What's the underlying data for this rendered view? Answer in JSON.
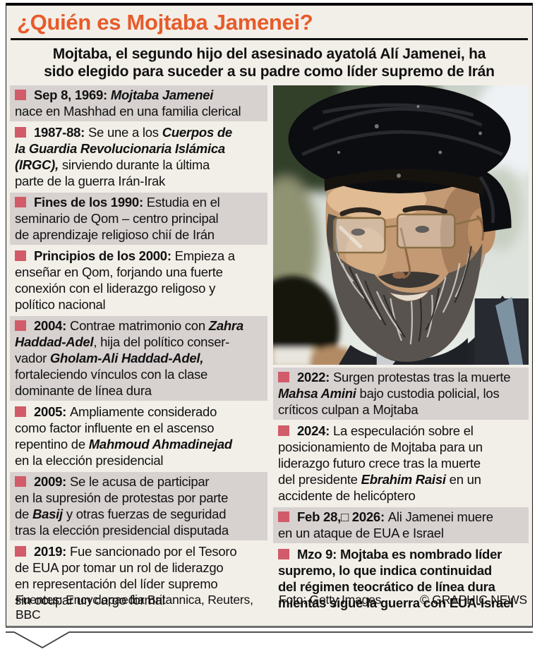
{
  "header": {
    "title": "¿Quién es Mojtaba Jamenei?",
    "subtitle": "Mojtaba, el segundo hijo del asesinado ayatolá Alí Jamenei, ha\nsido elegido para suceder a su padre como líder supremo de Irán"
  },
  "colors": {
    "accent_orange": "#E75B2B",
    "bullet_red": "#D15B69",
    "shade_gray": "#D7D1D0",
    "page_cream": "#F2EFE8"
  },
  "timeline": {
    "left": [
      {
        "shaded": true,
        "segments": [
          {
            "t": "Sep 8, 1969: ",
            "s": "b"
          },
          {
            "t": "Mojtaba Jamenei",
            "s": "bi"
          },
          {
            "t": "\nnace en Mashhad en una familia clerical",
            "s": "r"
          }
        ]
      },
      {
        "shaded": false,
        "segments": [
          {
            "t": "1987-88: ",
            "s": "b"
          },
          {
            "t": "Se une a los ",
            "s": "r"
          },
          {
            "t": "Cuerpos de\nla Guardia Revolucionaria Islámica\n(IRGC), ",
            "s": "bi"
          },
          {
            "t": "sirviendo durante la última\nparte de la guerra Irán-Irak",
            "s": "r"
          }
        ]
      },
      {
        "shaded": true,
        "segments": [
          {
            "t": "Fines de los 1990: ",
            "s": "b"
          },
          {
            "t": "Estudia en el\nseminario de Qom – centro principal\nde aprendizaje religioso chií de Irán",
            "s": "r"
          }
        ]
      },
      {
        "shaded": false,
        "segments": [
          {
            "t": "Principios de los 2000: ",
            "s": "b"
          },
          {
            "t": "Empieza a\nenseñar en Qom, forjando una fuerte\nconexión con el liderazgo religoso y\npolítico nacional",
            "s": "r"
          }
        ]
      },
      {
        "shaded": true,
        "segments": [
          {
            "t": "2004: ",
            "s": "b"
          },
          {
            "t": "Contrae matrimonio con ",
            "s": "r"
          },
          {
            "t": "Zahra\nHaddad-Adel",
            "s": "bi"
          },
          {
            "t": ", hija del político conser-\nvador ",
            "s": "r"
          },
          {
            "t": "Gholam-Ali Haddad-Adel,",
            "s": "bi"
          },
          {
            "t": "\nfortaleciendo vínculos con la clase\ndominante de línea dura",
            "s": "r"
          }
        ]
      },
      {
        "shaded": false,
        "segments": [
          {
            "t": "2005: ",
            "s": "b"
          },
          {
            "t": "Ampliamente considerado\ncomo factor influente en el ascenso\nrepentino de ",
            "s": "r"
          },
          {
            "t": "Mahmoud Ahmadinejad",
            "s": "bi"
          },
          {
            "t": "\nen la elección presidencial",
            "s": "r"
          }
        ]
      },
      {
        "shaded": true,
        "segments": [
          {
            "t": "2009: ",
            "s": "b"
          },
          {
            "t": "Se le acusa de participar\nen la supresión de protestas por parte\nde ",
            "s": "r"
          },
          {
            "t": "Basij",
            "s": "bi"
          },
          {
            "t": " y otras fuerzas de seguridad\ntras la elección presidencial disputada",
            "s": "r"
          }
        ]
      },
      {
        "shaded": false,
        "segments": [
          {
            "t": "2019: ",
            "s": "b"
          },
          {
            "t": "Fue sancionado por el Tesoro\nde EUA por tomar un rol de liderazgo\nen representación del líder supremo\nsin ocupar un cargo formal",
            "s": "r"
          }
        ]
      }
    ],
    "right": [
      {
        "shaded": true,
        "segments": [
          {
            "t": "2022: ",
            "s": "b"
          },
          {
            "t": "Surgen protestas tras la muerte\n",
            "s": "r"
          },
          {
            "t": "Mahsa Amini",
            "s": "bi"
          },
          {
            "t": " bajo custodia policial, los\ncríticos culpan a Mojtaba",
            "s": "r"
          }
        ]
      },
      {
        "shaded": false,
        "segments": [
          {
            "t": "2024: ",
            "s": "b"
          },
          {
            "t": "La especulación sobre el\nposicionamiento de Mojtaba para un\nliderazgo futuro crece tras la muerte\ndel presidente ",
            "s": "r"
          },
          {
            "t": "Ebrahim Raisi",
            "s": "bi"
          },
          {
            "t": " en un\naccidente de helicóptero",
            "s": "r"
          }
        ]
      },
      {
        "shaded": true,
        "segments": [
          {
            "t": "Feb 28,□ 2026: ",
            "s": "b"
          },
          {
            "t": "Ali Jamenei muere\nen un ataque de EUA e Israel",
            "s": "r"
          }
        ]
      },
      {
        "shaded": false,
        "segments": [
          {
            "t": "Mzo 9: ",
            "s": "b"
          },
          {
            "t": "Mojtaba es nombrado líder\nsupremo, lo que indica continuidad\ndel régimen teocrático de línea dura\nmientas sigue la guerra con EUA-Israel",
            "s": "b"
          }
        ]
      }
    ]
  },
  "photo": {
    "alt": "Mojtaba Jamenei con turbante negro, lentes y barba canosa"
  },
  "footer": {
    "sources": "Fuentes: Encyclopaedia Britannica, Reuters, BBC",
    "photo_credit": "Foto: Getty Images",
    "copyright": "© GRAPHIC NEWS"
  }
}
